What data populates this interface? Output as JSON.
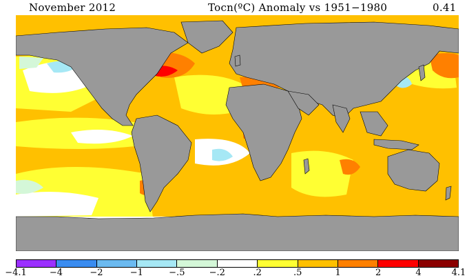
{
  "header": {
    "month": "November 2012",
    "title": "Tocn(ºC) Anomaly vs 1951−1980",
    "global_mean": "0.41"
  },
  "legend": {
    "colors": [
      "#9b30ff",
      "#3a8cf0",
      "#6bbaf0",
      "#a6e8f5",
      "#d4f7d8",
      "#ffffff",
      "#ffff33",
      "#ffc000",
      "#ff8000",
      "#ff0000",
      "#8b0000"
    ],
    "ticks": [
      "−4.1",
      "−4",
      "−2",
      "−1",
      "−.5",
      "−.2",
      ".2",
      ".5",
      "1",
      "2",
      "4",
      "4.1"
    ]
  },
  "map": {
    "land_color": "#999999",
    "description_colors": {
      "ocean_default": "#ffc000",
      "neutral": "#ffffff",
      "weak_warm": "#ffff33",
      "strong_warm": "#ff8000",
      "hot": "#ff0000",
      "weak_cool": "#d4f7d8",
      "cool": "#a6e8f5"
    }
  }
}
